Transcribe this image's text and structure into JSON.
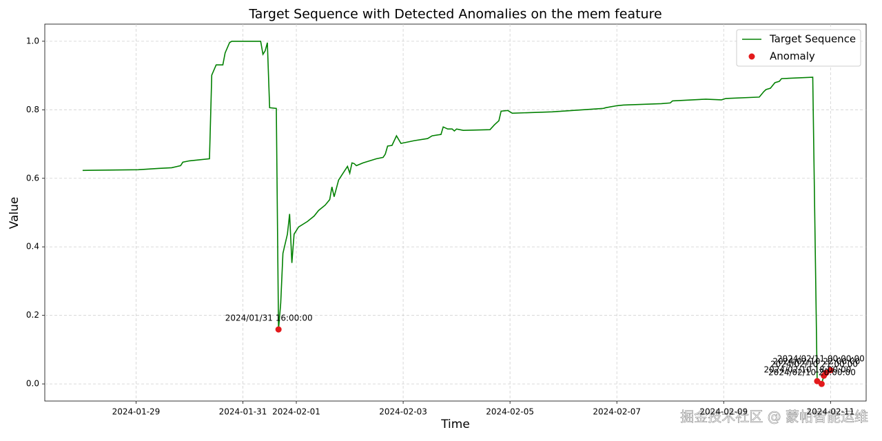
{
  "chart_data": {
    "type": "line",
    "title": "Target Sequence with Detected Anomalies on the mem feature",
    "x_label": "Time",
    "y_label": "Value",
    "grid": true,
    "legend": "upper right",
    "xlim": [
      "2024-01-27 07:00",
      "2024-02-11 16:00"
    ],
    "ylim": [
      -0.05,
      1.05
    ],
    "xticks": [
      {
        "value": "2024-01-29 00:00",
        "label": "2024-01-29"
      },
      {
        "value": "2024-01-31 00:00",
        "label": "2024-01-31"
      },
      {
        "value": "2024-02-01 00:00",
        "label": "2024-02-01"
      },
      {
        "value": "2024-02-03 00:00",
        "label": "2024-02-03"
      },
      {
        "value": "2024-02-05 00:00",
        "label": "2024-02-05"
      },
      {
        "value": "2024-02-07 00:00",
        "label": "2024-02-07"
      },
      {
        "value": "2024-02-09 00:00",
        "label": "2024-02-09"
      },
      {
        "value": "2024-02-11 00:00",
        "label": "2024-02-11"
      }
    ],
    "yticks": [
      {
        "value": 0,
        "label": "0.0"
      },
      0.2,
      0.4,
      0.6,
      0.8,
      {
        "value": 1,
        "label": "1.0"
      }
    ],
    "series": [
      {
        "name": "Target Sequence",
        "color": "#008000",
        "x": [
          "2024-01-28 00:00",
          "2024-01-29 01:00",
          "2024-01-29 10:00",
          "2024-01-29 16:00",
          "2024-01-29 20:00",
          "2024-01-29 21:00",
          "2024-01-30 00:00",
          "2024-01-30 09:00",
          "2024-01-30 10:00",
          "2024-01-30 12:00",
          "2024-01-30 15:00",
          "2024-01-30 16:00",
          "2024-01-30 18:00",
          "2024-01-30 19:00",
          "2024-01-31 08:00",
          "2024-01-31 09:00",
          "2024-01-31 10:00",
          "2024-01-31 11:00",
          "2024-01-31 12:00",
          "2024-01-31 15:00",
          "2024-01-31 16:00",
          "2024-01-31 17:00",
          "2024-01-31 18:00",
          "2024-01-31 20:00",
          "2024-01-31 21:00",
          "2024-01-31 22:00",
          "2024-01-31 23:00",
          "2024-02-01 01:00",
          "2024-02-01 05:00",
          "2024-02-01 08:00",
          "2024-02-01 10:00",
          "2024-02-01 13:00",
          "2024-02-01 15:00",
          "2024-02-01 16:00",
          "2024-02-01 17:00",
          "2024-02-01 19:00",
          "2024-02-01 23:00",
          "2024-02-02 00:00",
          "2024-02-02 01:00",
          "2024-02-02 02:00",
          "2024-02-02 03:00",
          "2024-02-02 06:00",
          "2024-02-02 12:00",
          "2024-02-02 15:00",
          "2024-02-02 16:00",
          "2024-02-02 17:00",
          "2024-02-02 19:00",
          "2024-02-02 21:00",
          "2024-02-02 23:00",
          "2024-02-03 05:00",
          "2024-02-03 11:00",
          "2024-02-03 13:00",
          "2024-02-03 17:00",
          "2024-02-03 18:00",
          "2024-02-03 20:00",
          "2024-02-03 22:00",
          "2024-02-03 23:00",
          "2024-02-04 00:00",
          "2024-02-04 03:00",
          "2024-02-04 15:00",
          "2024-02-04 17:00",
          "2024-02-04 19:00",
          "2024-02-04 20:00",
          "2024-02-04 23:00",
          "2024-02-05 01:00",
          "2024-02-05 19:00",
          "2024-02-06 18:00",
          "2024-02-06 19:00",
          "2024-02-07 00:00",
          "2024-02-07 03:00",
          "2024-02-07 20:00",
          "2024-02-08 00:00",
          "2024-02-08 01:00",
          "2024-02-08 16:00",
          "2024-02-08 23:00",
          "2024-02-09 01:00",
          "2024-02-09 16:00",
          "2024-02-09 18:00",
          "2024-02-09 19:00",
          "2024-02-09 21:00",
          "2024-02-09 23:00",
          "2024-02-10 01:00",
          "2024-02-10 02:00",
          "2024-02-10 16:00",
          "2024-02-10 18:00",
          "2024-02-10 20:00",
          "2024-02-10 21:00",
          "2024-02-10 22:00",
          "2024-02-11 00:00"
        ],
        "values": [
          0.623,
          0.625,
          0.629,
          0.631,
          0.637,
          0.647,
          0.651,
          0.657,
          0.901,
          0.931,
          0.931,
          0.966,
          0.996,
          1.0,
          1.0,
          0.962,
          0.972,
          0.996,
          0.806,
          0.804,
          0.159,
          0.236,
          0.381,
          0.437,
          0.496,
          0.353,
          0.437,
          0.458,
          0.474,
          0.49,
          0.506,
          0.522,
          0.538,
          0.575,
          0.546,
          0.595,
          0.635,
          0.615,
          0.645,
          0.643,
          0.637,
          0.645,
          0.657,
          0.661,
          0.671,
          0.694,
          0.696,
          0.724,
          0.702,
          0.71,
          0.716,
          0.724,
          0.728,
          0.75,
          0.744,
          0.744,
          0.738,
          0.744,
          0.74,
          0.742,
          0.756,
          0.768,
          0.796,
          0.798,
          0.79,
          0.794,
          0.804,
          0.806,
          0.812,
          0.814,
          0.818,
          0.82,
          0.826,
          0.831,
          0.829,
          0.833,
          0.837,
          0.853,
          0.859,
          0.863,
          0.879,
          0.883,
          0.891,
          0.895,
          0.008,
          0.0,
          0.024,
          0.032,
          0.04
        ]
      },
      {
        "name": "Anomaly",
        "color": "#e31a1c",
        "type": "scatter",
        "x": [
          "2024-01-31 16:00",
          "2024-02-10 18:00",
          "2024-02-10 20:00",
          "2024-02-10 21:00",
          "2024-02-10 22:00",
          "2024-02-11 00:00"
        ],
        "values": [
          0.159,
          0.008,
          0.0,
          0.024,
          0.032,
          0.04
        ],
        "labels": [
          "2024/01/31 16:00:00",
          "2024/02/10 18:00:00",
          "2024/02/10 20:00:00",
          "2024/02/10 21:00:00",
          "2024/02/10 22:00:00",
          "2024/02/11 00:00:00"
        ]
      }
    ],
    "watermark": "掘金技术社区 @ 蒙帕智能运维"
  }
}
